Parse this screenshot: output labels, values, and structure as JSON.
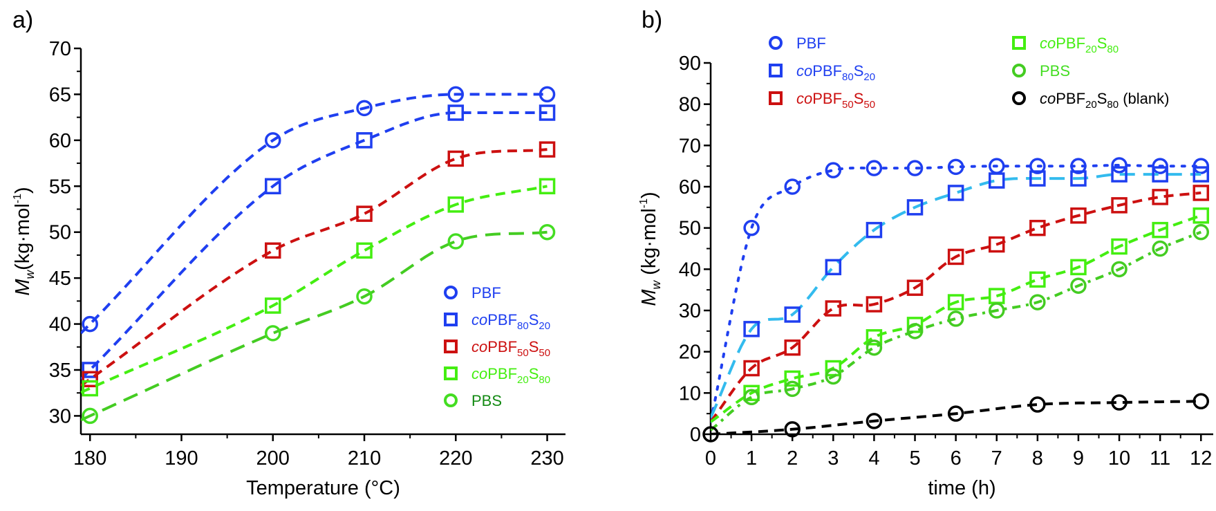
{
  "chart_data": [
    {
      "type": "scatter",
      "panel_label": "a)",
      "title": "",
      "xlabel": "Temperature (°C)",
      "ylabel_main": "M",
      "ylabel_sub": "w",
      "ylabel_rest": "(kg·mol",
      "ylabel_sup": "-1",
      "ylabel_close": ")",
      "xlim": [
        179,
        232
      ],
      "ylim": [
        28,
        70
      ],
      "xticks": [
        180,
        190,
        200,
        210,
        220,
        230
      ],
      "xtick_labels": [
        "180",
        "190",
        "200",
        "210",
        "220",
        "230"
      ],
      "yticks": [
        30,
        35,
        40,
        45,
        50,
        55,
        60,
        65,
        70
      ],
      "ytick_labels": [
        "30",
        "35",
        "40",
        "45",
        "50",
        "55",
        "60",
        "65",
        "70"
      ],
      "grid": false,
      "legend_position": "bottom-right",
      "x": [
        180,
        200,
        210,
        220,
        230
      ],
      "series": [
        {
          "name": "PBF",
          "prefix": "",
          "main": "PBF",
          "sub1": "",
          "mid": "",
          "sub2": "",
          "suffix": "",
          "marker": "circle",
          "color": "#1f3ff0",
          "label_color": "#1f3ff0",
          "fit_color": "#1f3ff0",
          "fit_style": "dash",
          "values": [
            40,
            60,
            63.5,
            65,
            65
          ]
        },
        {
          "name": "coPBF80S20",
          "prefix": "co",
          "main": "PBF",
          "sub1": "80",
          "mid": "S",
          "sub2": "20",
          "suffix": "",
          "marker": "square",
          "color": "#1f3ff0",
          "label_color": "#1f3ff0",
          "fit_color": "#1f3ff0",
          "fit_style": "dash",
          "values": [
            35,
            55,
            60,
            63,
            63
          ]
        },
        {
          "name": "coPBF50S50",
          "prefix": "co",
          "main": "PBF",
          "sub1": "50",
          "mid": "S",
          "sub2": "50",
          "suffix": "",
          "marker": "square",
          "color": "#cc1010",
          "label_color": "#cc1010",
          "fit_color": "#cc1010",
          "fit_style": "dash",
          "values": [
            34,
            48,
            52,
            58,
            59
          ]
        },
        {
          "name": "coPBF20S80",
          "prefix": "co",
          "main": "PBF",
          "sub1": "20",
          "mid": "S",
          "sub2": "80",
          "suffix": "",
          "marker": "square",
          "color": "#44ee11",
          "label_color": "#44ee11",
          "fit_color": "#44ee11",
          "fit_style": "dash",
          "values": [
            33,
            42,
            48,
            53,
            55
          ]
        },
        {
          "name": "PBS",
          "prefix": "",
          "main": "PBS",
          "sub1": "",
          "mid": "",
          "sub2": "",
          "suffix": "",
          "marker": "circle",
          "color": "#44dd22",
          "label_color": "#138a13",
          "fit_color": "#44cc22",
          "fit_style": "longdash",
          "values": [
            30,
            39,
            43,
            49,
            50
          ]
        }
      ]
    },
    {
      "type": "scatter",
      "panel_label": "b)",
      "title": "",
      "xlabel": "time (h)",
      "ylabel_main": "M",
      "ylabel_sub": "w",
      "ylabel_rest": " (kg·mol",
      "ylabel_sup": "-1",
      "ylabel_close": ")",
      "xlim": [
        0,
        12.3
      ],
      "ylim": [
        0,
        90
      ],
      "xticks": [
        0,
        1,
        2,
        3,
        4,
        5,
        6,
        7,
        8,
        9,
        10,
        11,
        12
      ],
      "xtick_labels": [
        "0",
        "1",
        "2",
        "3",
        "4",
        "5",
        "6",
        "7",
        "8",
        "9",
        "10",
        "11",
        "12"
      ],
      "yticks": [
        0,
        10,
        20,
        30,
        40,
        50,
        60,
        70,
        80,
        90
      ],
      "ytick_labels": [
        "0",
        "10",
        "20",
        "30",
        "40",
        "50",
        "60",
        "70",
        "80",
        "90"
      ],
      "grid": false,
      "legend_position": "top (two columns)",
      "series": [
        {
          "name": "PBF",
          "prefix": "",
          "main": "PBF",
          "sub1": "",
          "mid": "",
          "sub2": "",
          "suffix": "",
          "marker": "circle",
          "color": "#1f3ff0",
          "label_color": "#1f3ff0",
          "fit_color": "#1f3ff0",
          "fit_style": "dot",
          "x": [
            1,
            2,
            3,
            4,
            5,
            6,
            7,
            8,
            9,
            10,
            11,
            12
          ],
          "values": [
            50,
            60,
            64,
            64.5,
            64.5,
            64.8,
            65,
            65,
            65,
            65.2,
            65,
            65
          ]
        },
        {
          "name": "coPBF80S20",
          "prefix": "co",
          "main": "PBF",
          "sub1": "80",
          "mid": "S",
          "sub2": "20",
          "suffix": "",
          "marker": "square",
          "color": "#1f3ff0",
          "label_color": "#1f3ff0",
          "fit_color": "#33bbee",
          "fit_style": "longdash",
          "x": [
            1,
            2,
            3,
            4,
            5,
            6,
            7,
            8,
            9,
            10,
            11,
            12
          ],
          "values": [
            25.5,
            29,
            40.5,
            49.5,
            55,
            58.5,
            61.5,
            62,
            62,
            63,
            63,
            63
          ]
        },
        {
          "name": "coPBF50S50",
          "prefix": "co",
          "main": "PBF",
          "sub1": "50",
          "mid": "S",
          "sub2": "50",
          "suffix": "",
          "marker": "square",
          "color": "#cc1010",
          "label_color": "#cc1010",
          "fit_color": "#cc1010",
          "fit_style": "dash",
          "x": [
            1,
            2,
            3,
            4,
            5,
            6,
            7,
            8,
            9,
            10,
            11,
            12
          ],
          "values": [
            16,
            21,
            30.5,
            31.5,
            35.5,
            43,
            46,
            50,
            53,
            55.5,
            57.5,
            58.5
          ]
        },
        {
          "name": "coPBF20S80",
          "prefix": "co",
          "main": "PBF",
          "sub1": "20",
          "mid": "S",
          "sub2": "80",
          "suffix": "",
          "marker": "square",
          "color": "#44ee11",
          "label_color": "#44ee11",
          "fit_color": "#44ee11",
          "fit_style": "dash",
          "x": [
            1,
            2,
            3,
            4,
            5,
            6,
            7,
            8,
            9,
            10,
            11,
            12
          ],
          "values": [
            10,
            13.5,
            16,
            23.5,
            26.5,
            32,
            33.5,
            37.5,
            40.5,
            45.5,
            49.5,
            53
          ]
        },
        {
          "name": "PBS",
          "prefix": "",
          "main": "PBS",
          "sub1": "",
          "mid": "",
          "sub2": "",
          "suffix": "",
          "marker": "circle",
          "color": "#44cc22",
          "label_color": "#44dd22",
          "fit_color": "#44cc22",
          "fit_style": "dashdot",
          "x": [
            1,
            2,
            3,
            4,
            5,
            6,
            7,
            8,
            9,
            10,
            11,
            12
          ],
          "values": [
            9,
            11,
            14,
            21,
            25,
            28,
            30,
            32,
            36,
            40,
            45,
            49
          ]
        },
        {
          "name": "coPBF20S80 (blank)",
          "prefix": "co",
          "main": "PBF",
          "sub1": "20",
          "mid": "S",
          "sub2": "80",
          "suffix": " (blank)",
          "marker": "circle",
          "color": "#000000",
          "label_color": "#000000",
          "fit_color": "#000000",
          "fit_style": "dash",
          "x": [
            0,
            2,
            4,
            6,
            8,
            10,
            12
          ],
          "values": [
            0,
            1.2,
            3.2,
            5,
            7.2,
            7.7,
            8
          ]
        }
      ]
    }
  ]
}
